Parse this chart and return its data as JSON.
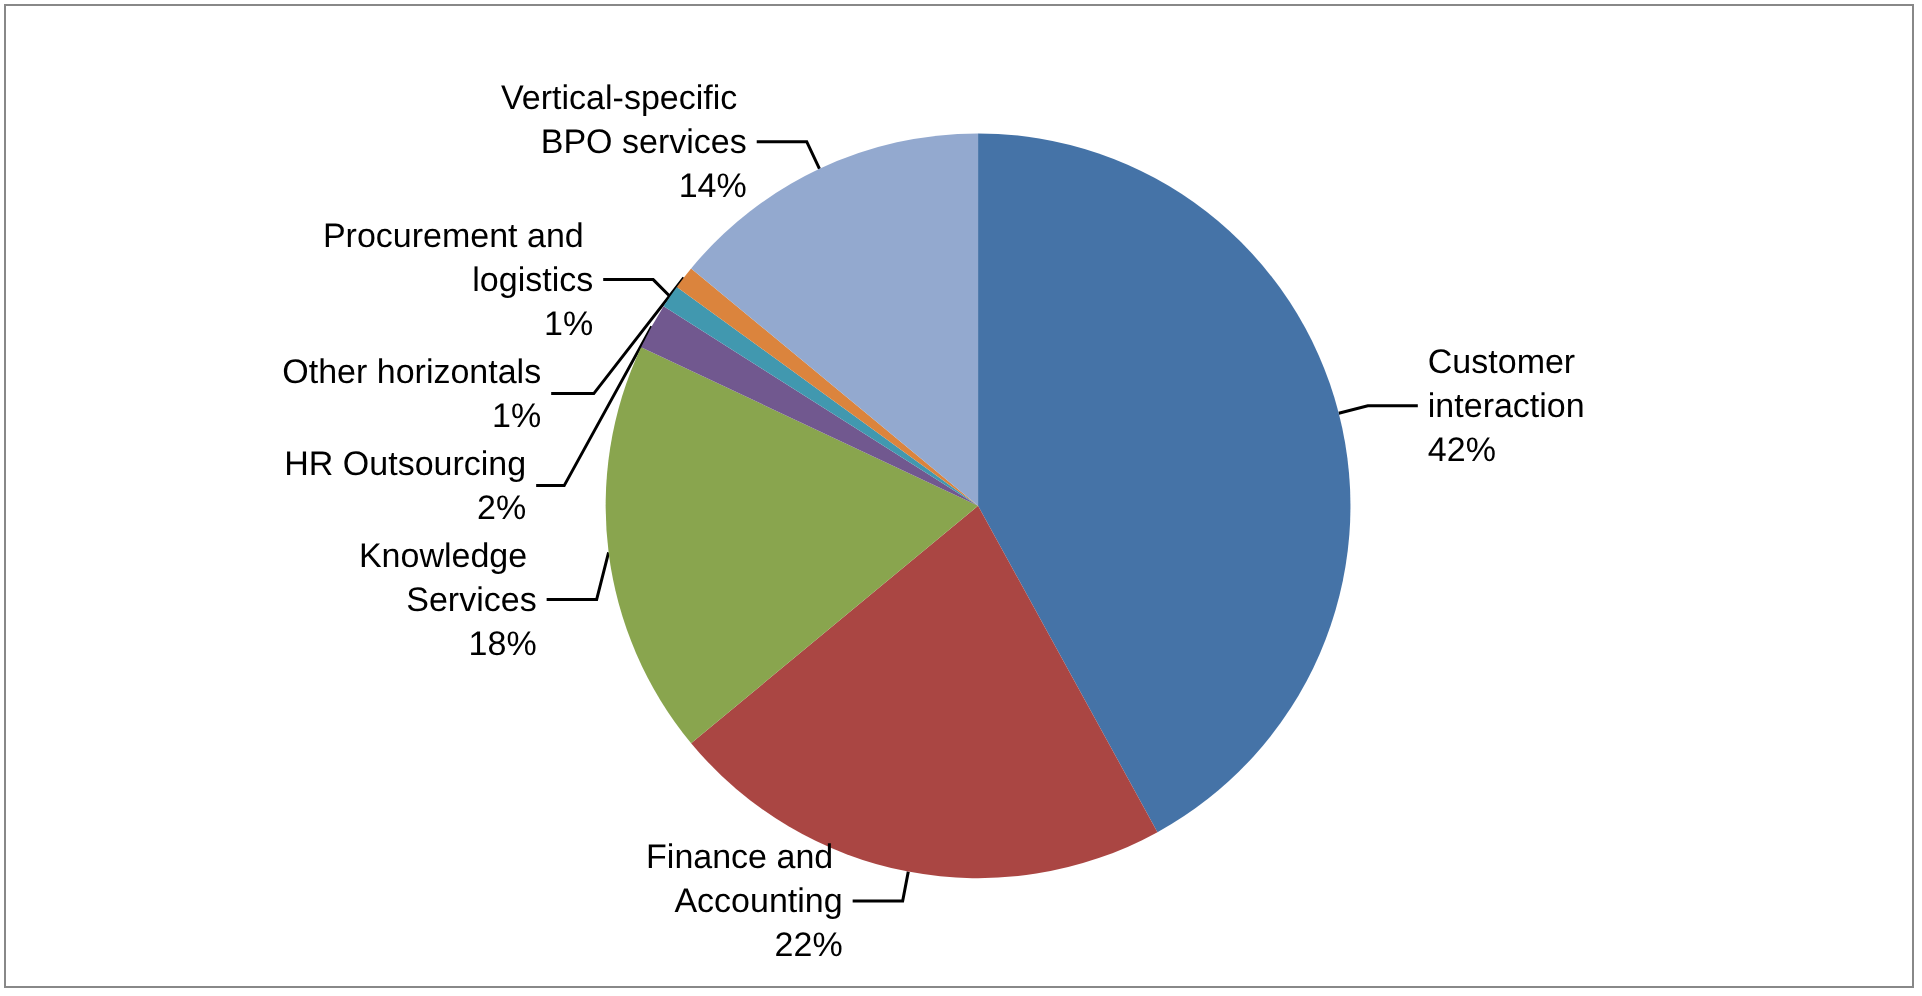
{
  "chart_data": {
    "type": "pie",
    "categories": [
      "Customer interaction",
      "Finance and Accounting",
      "Knowledge Services",
      "HR Outsourcing",
      "Procurement and logistics",
      "Other horizontals",
      "Vertical-specific BPO services"
    ],
    "values": [
      42,
      22,
      18,
      2,
      1,
      1,
      14
    ],
    "colors": [
      "#4573a7",
      "#aa4643",
      "#89a54e",
      "#71588f",
      "#4198af",
      "#db843d",
      "#93a9cf"
    ],
    "value_labels": [
      "42%",
      "22%",
      "18%",
      "2%",
      "1%",
      "1%",
      "14%"
    ],
    "legend": false
  }
}
